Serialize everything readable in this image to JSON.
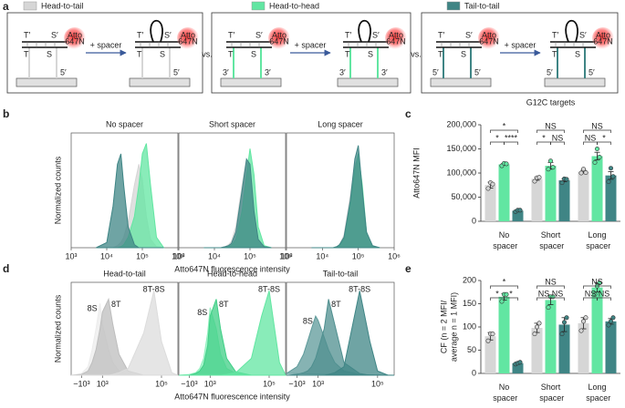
{
  "panel_labels": [
    "a",
    "b",
    "c",
    "d",
    "e"
  ],
  "legend": [
    {
      "name": "Head-to-tail",
      "color": "#d6d6d6"
    },
    {
      "name": "Head-to-head",
      "color": "#62e6a2"
    },
    {
      "name": "Tail-to-tail",
      "color": "#3f8585"
    }
  ],
  "schematic": {
    "top": [
      "T′",
      "S′"
    ],
    "bottom": [
      "T",
      "S"
    ],
    "dye": [
      "Atto",
      "647N"
    ],
    "step": "+ spacer",
    "separator": "vs.",
    "panels": [
      {
        "ends": [
          "5′"
        ]
      },
      {
        "ends": [
          "3′",
          "3′"
        ]
      },
      {
        "ends": [
          "5′",
          "5′"
        ]
      }
    ]
  },
  "chart_data": [
    {
      "type": "density",
      "title": "No spacer",
      "ylabel": "Normalized counts",
      "xscale": "log",
      "xlim": [
        1000,
        1000000
      ],
      "ylim": [
        0,
        110
      ],
      "xticks": [
        {
          "value": 1000,
          "label": "10³"
        },
        {
          "value": 10000,
          "label": "10⁴"
        },
        {
          "value": 100000,
          "label": "10⁵"
        },
        {
          "value": 1000000,
          "label": "10⁶"
        }
      ],
      "x": [
        5000,
        10000,
        15000,
        20000,
        25000,
        30000,
        40000,
        60000,
        80000,
        100000,
        130000,
        170000,
        250000,
        400000
      ],
      "series": [
        {
          "color": "#d6d6d6",
          "values": [
            0,
            0,
            0,
            2,
            5,
            10,
            25,
            60,
            80,
            65,
            30,
            8,
            1,
            0
          ]
        },
        {
          "color": "#62e6a2",
          "values": [
            0,
            0,
            0,
            0,
            1,
            3,
            10,
            30,
            60,
            90,
            100,
            60,
            10,
            0
          ]
        },
        {
          "color": "#3f8585",
          "values": [
            0,
            5,
            40,
            80,
            90,
            60,
            20,
            3,
            0,
            0,
            0,
            0,
            0,
            0
          ]
        }
      ]
    },
    {
      "type": "density",
      "title": "Short spacer",
      "xlabel": "Atto647N fluorescence intensity",
      "xscale": "log",
      "xlim": [
        1000,
        1000000
      ],
      "ylim": [
        0,
        110
      ],
      "xticks": [
        {
          "value": 1000,
          "label": "10³"
        },
        {
          "value": 10000,
          "label": "10⁴"
        },
        {
          "value": 100000,
          "label": "10⁵"
        },
        {
          "value": 1000000,
          "label": "10⁶"
        }
      ],
      "x": [
        5000,
        10000,
        15000,
        20000,
        25000,
        30000,
        40000,
        60000,
        80000,
        100000,
        130000,
        170000,
        250000,
        400000
      ],
      "series": [
        {
          "color": "#d6d6d6",
          "values": [
            0,
            0,
            0,
            1,
            3,
            6,
            20,
            60,
            85,
            60,
            25,
            5,
            0,
            0
          ]
        },
        {
          "color": "#62e6a2",
          "values": [
            0,
            0,
            0,
            0,
            1,
            2,
            8,
            35,
            70,
            95,
            70,
            20,
            2,
            0
          ]
        },
        {
          "color": "#3f8585",
          "values": [
            0,
            0,
            0,
            1,
            2,
            4,
            15,
            55,
            85,
            80,
            35,
            8,
            1,
            0
          ]
        }
      ]
    },
    {
      "type": "density",
      "title": "Long spacer",
      "xscale": "log",
      "xlim": [
        1000,
        1000000
      ],
      "ylim": [
        0,
        110
      ],
      "xticks": [
        {
          "value": 1000,
          "label": "10³"
        },
        {
          "value": 10000,
          "label": "10⁴"
        },
        {
          "value": 100000,
          "label": "10⁵"
        },
        {
          "value": 1000000,
          "label": "10⁶"
        }
      ],
      "x": [
        5000,
        10000,
        15000,
        20000,
        25000,
        30000,
        40000,
        60000,
        80000,
        100000,
        130000,
        170000,
        250000,
        400000
      ],
      "series": [
        {
          "color": "#d6d6d6",
          "values": [
            0,
            0,
            0,
            0,
            1,
            3,
            12,
            50,
            80,
            85,
            45,
            10,
            1,
            0
          ]
        },
        {
          "color": "#62e6a2",
          "values": [
            0,
            0,
            0,
            0,
            1,
            2,
            8,
            40,
            75,
            90,
            60,
            15,
            1,
            0
          ]
        },
        {
          "color": "#3f8585",
          "values": [
            0,
            0,
            0,
            0,
            1,
            3,
            10,
            45,
            85,
            98,
            55,
            15,
            2,
            0
          ]
        }
      ]
    },
    {
      "type": "bar",
      "title": "G12C targets",
      "ylabel": [
        "Atto647N MFI"
      ],
      "categories": [
        "No spacer",
        "Short spacer",
        "Long spacer"
      ],
      "ylim": [
        0,
        200000
      ],
      "yticks": [
        0,
        {
          "value": 50000,
          "label": "50,000"
        },
        {
          "value": 100000,
          "label": "100,000"
        },
        {
          "value": 150000,
          "label": "150,000"
        },
        {
          "value": 200000,
          "label": "200,000"
        }
      ],
      "series": [
        {
          "color": "#d6d6d6",
          "values": [
            75000,
            88000,
            103000
          ],
          "errors": [
            6000,
            3000,
            3000
          ],
          "replicates": [
            [
              68000,
              80000,
              77000
            ],
            [
              83000,
              90000,
              91000
            ],
            [
              100000,
              108000,
              101000
            ]
          ]
        },
        {
          "color": "#62e6a2",
          "values": [
            118000,
            115000,
            135000
          ],
          "errors": [
            2000,
            7000,
            8000
          ],
          "replicates": [
            [
              115000,
              120000,
              119000
            ],
            [
              108000,
              125000,
              112000
            ],
            [
              122000,
              150000,
              133000
            ]
          ]
        },
        {
          "color": "#3f8585",
          "values": [
            22000,
            85000,
            95000
          ],
          "errors": [
            1000,
            3000,
            8000
          ],
          "replicates": [
            [
              20000,
              23000,
              23000
            ],
            [
              80000,
              88000,
              87000
            ],
            [
              82000,
              110000,
              93000
            ]
          ]
        }
      ],
      "significance": [
        {
          "label": "*",
          "category": 0,
          "from": 0,
          "to": 2,
          "level": 2
        },
        {
          "label": "*",
          "category": 0,
          "from": 0,
          "to": 1,
          "level": 1
        },
        {
          "label": "****",
          "category": 0,
          "from": 1,
          "to": 2,
          "level": 1
        },
        {
          "label": "NS",
          "category": 1,
          "from": 0,
          "to": 2,
          "level": 2
        },
        {
          "label": "*",
          "category": 1,
          "from": 0,
          "to": 1,
          "level": 1
        },
        {
          "label": "NS",
          "category": 1,
          "from": 1,
          "to": 2,
          "level": 1
        },
        {
          "label": "NS",
          "category": 2,
          "from": 0,
          "to": 2,
          "level": 2
        },
        {
          "label": "NS",
          "category": 2,
          "from": 0,
          "to": 1,
          "level": 1
        },
        {
          "label": "*",
          "category": 2,
          "from": 1,
          "to": 2,
          "level": 1
        }
      ]
    },
    {
      "type": "density",
      "title": "Head-to-tail",
      "ylabel": "Normalized counts",
      "xscale": "symlog",
      "xlim": [
        -3000,
        300000
      ],
      "ylim": [
        0,
        110
      ],
      "xticks": [
        {
          "value": -1000,
          "label": "−10³"
        },
        {
          "value": 1000,
          "label": "10³"
        },
        {
          "value": 100000,
          "label": "10⁵"
        }
      ],
      "x": [
        -3000,
        -1000,
        -300,
        0,
        300,
        700,
        1000,
        2000,
        3000,
        5000,
        10000,
        30000,
        60000,
        100000,
        200000,
        300000
      ],
      "series": [
        {
          "name": "8S",
          "color": "#ececec",
          "values": [
            0,
            2,
            10,
            30,
            55,
            85,
            60,
            30,
            15,
            5,
            1,
            0,
            0,
            0,
            0,
            0
          ]
        },
        {
          "name": "8T",
          "color": "#bdbdbd",
          "values": [
            0,
            1,
            5,
            15,
            30,
            55,
            75,
            90,
            60,
            25,
            5,
            0,
            0,
            0,
            0,
            0
          ]
        },
        {
          "name": "8T-8S",
          "color": "#dcdcdc",
          "values": [
            0,
            0,
            0,
            0,
            0,
            0,
            0,
            0,
            1,
            3,
            8,
            50,
            100,
            40,
            3,
            0
          ]
        }
      ]
    },
    {
      "type": "density",
      "title": "Head-to-head",
      "xlabel": "Atto647N fluorescence intensity",
      "xscale": "symlog",
      "xlim": [
        -3000,
        300000
      ],
      "ylim": [
        0,
        110
      ],
      "xticks": [
        {
          "value": -1000,
          "label": "−10³"
        },
        {
          "value": 1000,
          "label": "10³"
        },
        {
          "value": 100000,
          "label": "10⁵"
        }
      ],
      "x": [
        -3000,
        -1000,
        -300,
        0,
        300,
        700,
        1000,
        2000,
        3000,
        5000,
        10000,
        30000,
        60000,
        100000,
        200000,
        300000
      ],
      "series": [
        {
          "name": "8S",
          "color": "#8ff0bd",
          "values": [
            0,
            1,
            3,
            8,
            20,
            50,
            80,
            55,
            25,
            8,
            2,
            0,
            0,
            0,
            0,
            0
          ]
        },
        {
          "name": "8T",
          "color": "#3fcf86",
          "values": [
            0,
            0,
            2,
            5,
            12,
            35,
            70,
            90,
            55,
            20,
            4,
            0,
            0,
            0,
            0,
            0
          ]
        },
        {
          "name": "8T-8S",
          "color": "#62e6a2",
          "values": [
            0,
            0,
            0,
            0,
            0,
            0,
            0,
            0,
            0,
            1,
            3,
            20,
            70,
            100,
            15,
            0
          ]
        }
      ]
    },
    {
      "type": "density",
      "title": "Tail-to-tail",
      "xscale": "symlog",
      "xlim": [
        -3000,
        300000
      ],
      "ylim": [
        0,
        110
      ],
      "xticks": [
        {
          "value": -1000,
          "label": "−10³"
        },
        {
          "value": 1000,
          "label": "10³"
        },
        {
          "value": 100000,
          "label": "10⁵"
        }
      ],
      "x": [
        -3000,
        -1000,
        -300,
        0,
        300,
        700,
        1000,
        2000,
        3000,
        5000,
        10000,
        30000,
        60000,
        100000,
        200000,
        300000
      ],
      "series": [
        {
          "name": "8S",
          "color": "#5e9a9a",
          "values": [
            2,
            10,
            25,
            40,
            55,
            70,
            65,
            45,
            30,
            15,
            5,
            1,
            0,
            0,
            0,
            0
          ]
        },
        {
          "name": "8T",
          "color": "#4f8f8f",
          "values": [
            0,
            1,
            3,
            5,
            10,
            20,
            30,
            55,
            90,
            60,
            15,
            2,
            0,
            0,
            0,
            0
          ]
        },
        {
          "name": "8T-8S",
          "color": "#3f8585",
          "values": [
            0,
            0,
            0,
            0,
            0,
            0,
            0,
            0,
            1,
            3,
            10,
            100,
            40,
            5,
            0,
            0
          ]
        }
      ]
    },
    {
      "type": "bar",
      "ylabel": [
        "CF (n = 2 MFI/",
        "average n = 1 MFI)"
      ],
      "categories": [
        "No spacer",
        "Short spacer",
        "Long spacer"
      ],
      "ylim": [
        0,
        200
      ],
      "yticks": [
        0,
        50,
        100,
        150,
        200
      ],
      "series": [
        {
          "color": "#d6d6d6",
          "values": [
            80,
            98,
            108
          ],
          "errors": [
            8,
            10,
            12
          ],
          "replicates": [
            [
              70,
              85,
              85
            ],
            [
              85,
              100,
              108
            ],
            [
              92,
              112,
              120
            ]
          ]
        },
        {
          "color": "#62e6a2",
          "values": [
            165,
            158,
            185
          ],
          "errors": [
            7,
            10,
            10
          ],
          "replicates": [
            [
              155,
              170,
              170
            ],
            [
              142,
              165,
              165
            ],
            [
              170,
              188,
              195
            ]
          ]
        },
        {
          "color": "#3f8585",
          "values": [
            22,
            105,
            112
          ],
          "errors": [
            2,
            15,
            6
          ],
          "replicates": [
            [
              20,
              22,
              24
            ],
            [
              85,
              110,
              120
            ],
            [
              104,
              112,
              120
            ]
          ]
        }
      ],
      "significance": [
        {
          "label": "*",
          "category": 0,
          "from": 0,
          "to": 2,
          "level": 2
        },
        {
          "label": "*",
          "category": 0,
          "from": 0,
          "to": 1,
          "level": 1
        },
        {
          "label": "*",
          "category": 0,
          "from": 1,
          "to": 2,
          "level": 1
        },
        {
          "label": "NS",
          "category": 1,
          "from": 0,
          "to": 2,
          "level": 2
        },
        {
          "label": "NS",
          "category": 1,
          "from": 0,
          "to": 1,
          "level": 1
        },
        {
          "label": "NS",
          "category": 1,
          "from": 1,
          "to": 2,
          "level": 1
        },
        {
          "label": "NS",
          "category": 2,
          "from": 0,
          "to": 2,
          "level": 2
        },
        {
          "label": "NS",
          "category": 2,
          "from": 0,
          "to": 1,
          "level": 1
        },
        {
          "label": "NS",
          "category": 2,
          "from": 1,
          "to": 2,
          "level": 1
        }
      ]
    }
  ]
}
